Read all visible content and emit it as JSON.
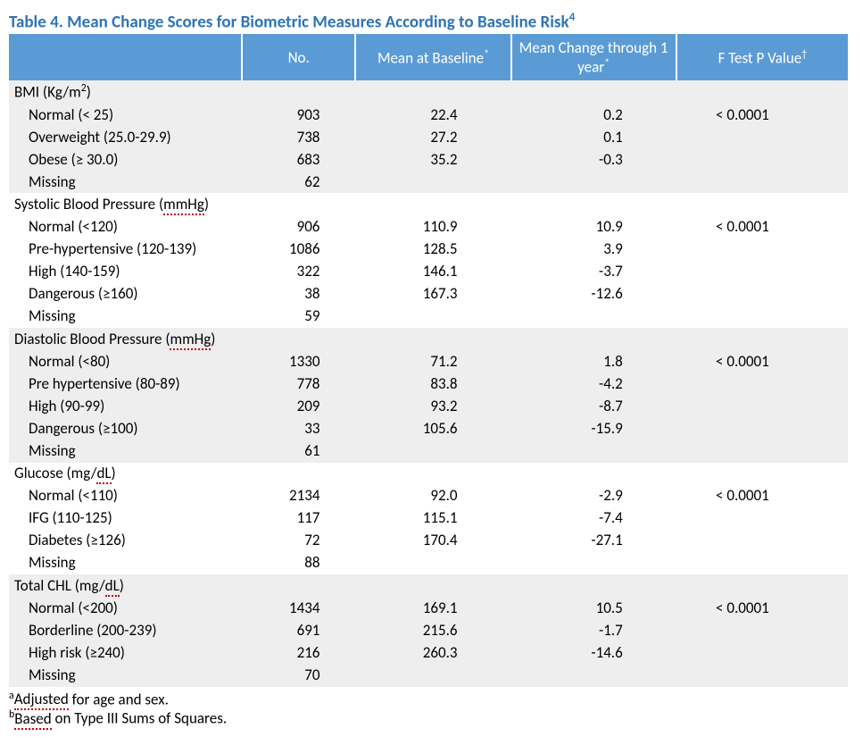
{
  "title": "Table 4. Mean Change Scores for Biometric Measures According to Baseline Risk",
  "title_sup": "4",
  "headers": {
    "label": "",
    "no": "No.",
    "baseline": "Mean at Baseline",
    "baseline_sup": "*",
    "change": "Mean Change through 1 year",
    "change_sup": "*",
    "ftest": "F Test P Value",
    "ftest_sup": "†"
  },
  "sections": [
    {
      "header": "BMI (Kg/m",
      "header_sup": "2",
      "header_tail": ")",
      "spell_word": null,
      "alt": "a",
      "rows": [
        {
          "label": "Normal (< 25)",
          "no": "903",
          "baseline": "22.4",
          "change": "0.2",
          "ftest": "< 0.0001"
        },
        {
          "label": "Overweight (25.0-29.9)",
          "no": "738",
          "baseline": "27.2",
          "change": "0.1",
          "ftest": ""
        },
        {
          "label": "Obese (≥ 30.0)",
          "no": "683",
          "baseline": "35.2",
          "change": "-0.3",
          "ftest": ""
        },
        {
          "label": "Missing",
          "no": "62",
          "baseline": "",
          "change": "",
          "ftest": ""
        }
      ]
    },
    {
      "header": "Systolic Blood Pressure (",
      "header_tail": ")",
      "spell_word": "mmHg",
      "alt": "b",
      "rows": [
        {
          "label": "Normal (<120)",
          "no": "906",
          "baseline": "110.9",
          "change": "10.9",
          "ftest": "< 0.0001"
        },
        {
          "label": "Pre-hypertensive (120-139)",
          "no": "1086",
          "baseline": "128.5",
          "change": "3.9",
          "ftest": ""
        },
        {
          "label": "High (140-159)",
          "no": "322",
          "baseline": "146.1",
          "change": "-3.7",
          "ftest": ""
        },
        {
          "label": "Dangerous (≥160)",
          "no": "38",
          "baseline": "167.3",
          "change": "-12.6",
          "ftest": ""
        },
        {
          "label": "Missing",
          "no": "59",
          "baseline": "",
          "change": "",
          "ftest": ""
        }
      ]
    },
    {
      "header": "Diastolic Blood Pressure (",
      "header_tail": ")",
      "spell_word": "mmHg",
      "alt": "a",
      "rows": [
        {
          "label": "Normal (<80)",
          "no": "1330",
          "baseline": "71.2",
          "change": "1.8",
          "ftest": "< 0.0001"
        },
        {
          "label": "Pre hypertensive (80-89)",
          "no": "778",
          "baseline": "83.8",
          "change": "-4.2",
          "ftest": ""
        },
        {
          "label": "High (90-99)",
          "no": "209",
          "baseline": "93.2",
          "change": "-8.7",
          "ftest": ""
        },
        {
          "label": "Dangerous (≥100)",
          "no": "33",
          "baseline": "105.6",
          "change": "-15.9",
          "ftest": ""
        },
        {
          "label": "Missing",
          "no": "61",
          "baseline": "",
          "change": "",
          "ftest": ""
        }
      ]
    },
    {
      "header": "Glucose (mg/",
      "header_tail": ")",
      "spell_word": "dL",
      "alt": "b",
      "rows": [
        {
          "label": "Normal (<110)",
          "no": "2134",
          "baseline": "92.0",
          "change": "-2.9",
          "ftest": "< 0.0001"
        },
        {
          "label": "IFG (110-125)",
          "no": "117",
          "baseline": "115.1",
          "change": "-7.4",
          "ftest": ""
        },
        {
          "label": "Diabetes (≥126)",
          "no": "72",
          "baseline": "170.4",
          "change": "-27.1",
          "ftest": ""
        },
        {
          "label": "Missing",
          "no": "88",
          "baseline": "",
          "change": "",
          "ftest": ""
        }
      ]
    },
    {
      "header": "Total CHL (mg/",
      "header_tail": ")",
      "spell_word": "dL",
      "alt": "a",
      "rows": [
        {
          "label": "Normal (<200)",
          "no": "1434",
          "baseline": "169.1",
          "change": "10.5",
          "ftest": "< 0.0001"
        },
        {
          "label": "Borderline (200-239)",
          "no": "691",
          "baseline": "215.6",
          "change": "-1.7",
          "ftest": ""
        },
        {
          "label": "High risk (≥240)",
          "no": "216",
          "baseline": "260.3",
          "change": "-14.6",
          "ftest": ""
        },
        {
          "label": "Missing",
          "no": "70",
          "baseline": "",
          "change": "",
          "ftest": ""
        }
      ]
    }
  ],
  "footnotes": [
    {
      "sup": "a",
      "pre": "Adjusted",
      "rest": " for age and sex.",
      "spell_pre": true
    },
    {
      "sup": "b",
      "pre": "Based",
      "rest": " on Type III Sums of Squares.",
      "spell_pre": true
    }
  ],
  "colors": {
    "title": "#2e74b5",
    "header_bg": "#5b9bd5",
    "header_fg": "#ffffff",
    "alt_a": "#eeeeee",
    "alt_b": "#ffffff",
    "spell_underline": "#c00000"
  }
}
